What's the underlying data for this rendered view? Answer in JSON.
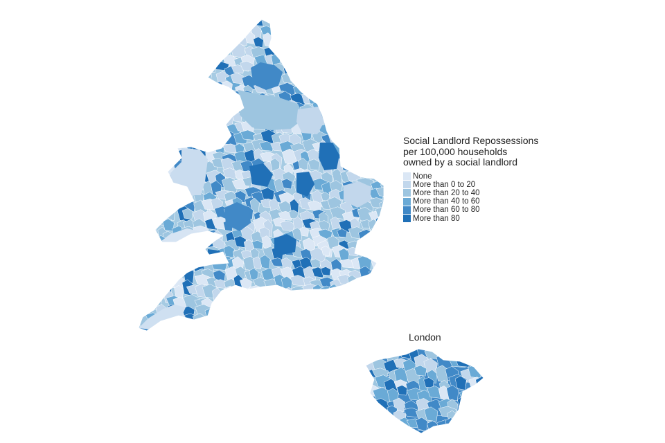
{
  "legend": {
    "title_lines": [
      "Social Landlord Repossessions",
      "per 100,000 households",
      "owned by a social landlord"
    ],
    "categories": [
      {
        "label": "None",
        "color": "#dbe7f5"
      },
      {
        "label": "More than 0 to 20",
        "color": "#c2d7ec"
      },
      {
        "label": "More than 20 to 40",
        "color": "#9dc5e0"
      },
      {
        "label": "More than 40 to 60",
        "color": "#6aaad6"
      },
      {
        "label": "More than 60 to 80",
        "color": "#4189c7"
      },
      {
        "label": "More than 80",
        "color": "#2070b7"
      }
    ]
  },
  "inset": {
    "label": "London"
  },
  "map_data": {
    "type": "choropleth",
    "region": "England and Wales local authorities",
    "inset_region": "London boroughs"
  }
}
